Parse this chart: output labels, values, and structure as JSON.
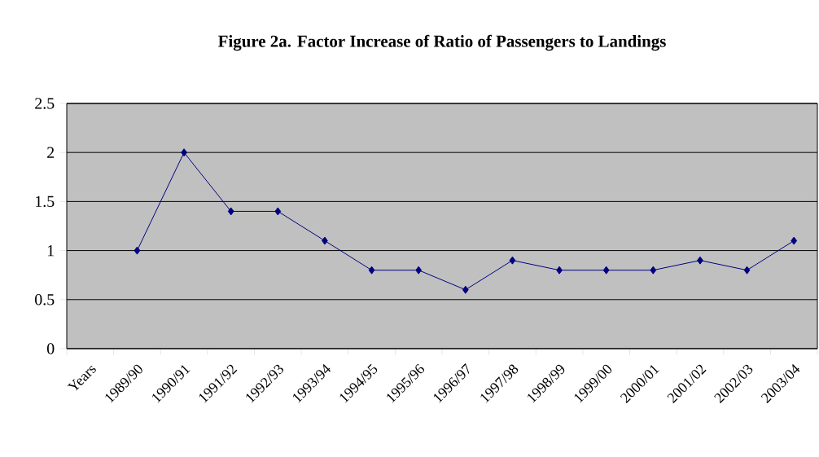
{
  "chart_data": {
    "type": "line",
    "title": "Figure 2a. Factor Increase of Ratio of Passengers to Landings",
    "categories": [
      "Years",
      "1989/90",
      "1990/91",
      "1991/92",
      "1992/93",
      "1993/94",
      "1994/95",
      "1995/96",
      "1996/97",
      "1997/98",
      "1998/99",
      "1999/00",
      "2000/01",
      "2001/02",
      "2002/03",
      "2003/04"
    ],
    "series": [
      {
        "color": "#000080",
        "values": [
          null,
          1,
          2,
          1.4,
          1.4,
          1.1,
          0.8,
          0.8,
          0.6,
          0.9,
          0.8,
          0.8,
          0.8,
          0.9,
          0.8,
          1.1
        ]
      }
    ],
    "ylim": [
      0,
      2.5
    ],
    "yticks": [
      0,
      0.5,
      1,
      1.5,
      2,
      2.5
    ],
    "grid": "y",
    "marker": "diamond",
    "line_style": "solid"
  }
}
